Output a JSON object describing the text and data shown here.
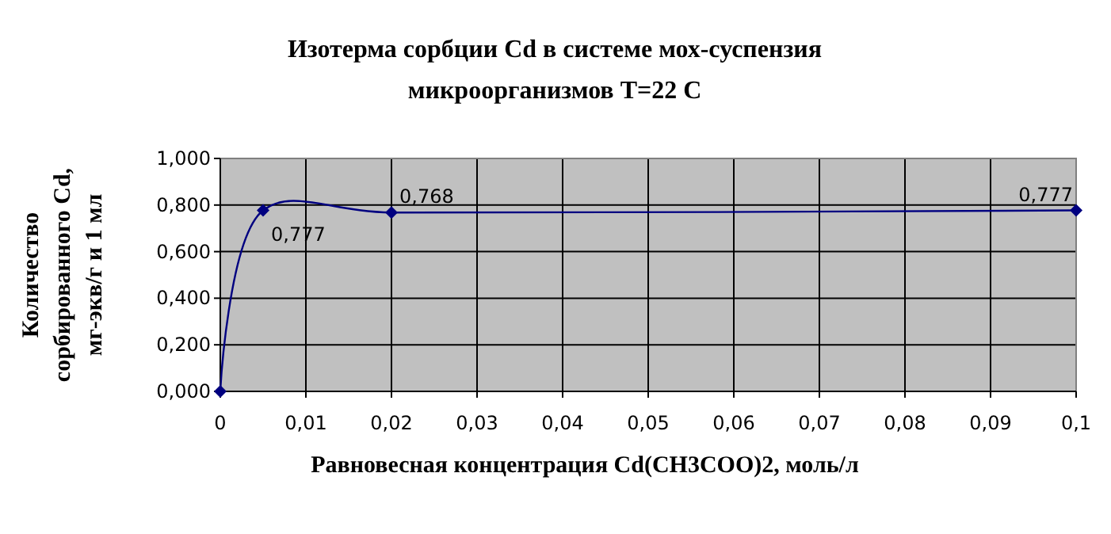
{
  "chart_data": {
    "type": "line",
    "title": "Изотерма сорбции Cd в системе мох-суспензия\nмикроорганизмов  T=22 C",
    "xlabel": "Равновесная концентрация Cd(CH3COO)2, моль/л",
    "ylabel": "Количество\nсорбированного Cd,\nмг-экв/г  и 1 мл",
    "x": [
      0,
      0.005,
      0.02,
      0.1
    ],
    "series": [
      {
        "color": "#000080",
        "values": [
          0,
          0.777,
          0.768,
          0.777
        ],
        "value_labels": [
          null,
          "0,777",
          "0,768",
          "0,777"
        ]
      }
    ],
    "xlim": [
      0,
      0.1
    ],
    "xticks": [
      {
        "value": 0,
        "label": "0"
      },
      {
        "value": 0.01,
        "label": "0,01"
      },
      {
        "value": 0.02,
        "label": "0,02"
      },
      {
        "value": 0.03,
        "label": "0,03"
      },
      {
        "value": 0.04,
        "label": "0,04"
      },
      {
        "value": 0.05,
        "label": "0,05"
      },
      {
        "value": 0.06,
        "label": "0,06"
      },
      {
        "value": 0.07,
        "label": "0,07"
      },
      {
        "value": 0.08,
        "label": "0,08"
      },
      {
        "value": 0.09,
        "label": "0,09"
      },
      {
        "value": 0.1,
        "label": "0,1"
      }
    ],
    "ylim": [
      0,
      1
    ],
    "yticks": [
      {
        "value": 0,
        "label": "0,000"
      },
      {
        "value": 0.2,
        "label": "0,200"
      },
      {
        "value": 0.4,
        "label": "0,400"
      },
      {
        "value": 0.6,
        "label": "0,600"
      },
      {
        "value": 0.8,
        "label": "0,800"
      },
      {
        "value": 1,
        "label": "1,000"
      }
    ],
    "grid": true,
    "marker": "diamond",
    "line_style": "solid"
  }
}
